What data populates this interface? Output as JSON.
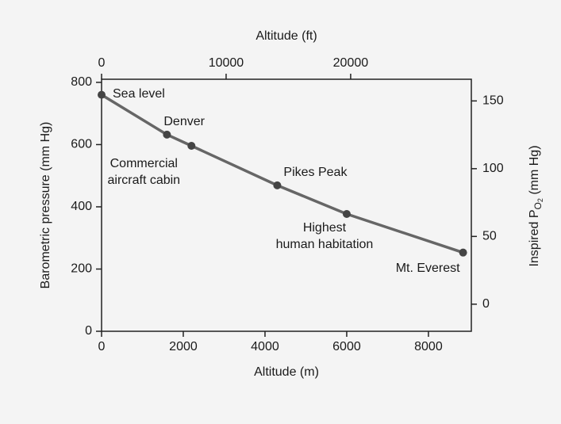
{
  "chart_data": {
    "type": "line",
    "xlabel": "Altitude (m)",
    "ylabel": "Barometric pressure (mm Hg)",
    "x2label": "Altitude (ft)",
    "y2label_parts": [
      "Inspired P",
      "O",
      "2",
      " (mm Hg)"
    ],
    "x": [
      0,
      1600,
      2200,
      4300,
      6000,
      8848
    ],
    "values": [
      760,
      632,
      596,
      469,
      377,
      253
    ],
    "point_labels": [
      [
        "Sea level"
      ],
      [
        "Denver"
      ],
      [
        "Commercial",
        "aircraft cabin"
      ],
      [
        "Pikes Peak"
      ],
      [
        "Highest",
        "human habitation"
      ],
      [
        "Mt. Everest"
      ]
    ],
    "color": "#666666",
    "xlim": [
      0,
      9050
    ],
    "xticks": [
      0,
      2000,
      4000,
      6000,
      8000
    ],
    "ylim": [
      0,
      810
    ],
    "yticks": [
      0,
      200,
      400,
      600,
      800
    ],
    "x2lim": [
      0,
      29690
    ],
    "x2ticks": [
      0,
      10000,
      20000
    ],
    "y2lim": [
      -20,
      166
    ],
    "y2ticks": [
      0,
      50,
      100,
      150
    ]
  }
}
